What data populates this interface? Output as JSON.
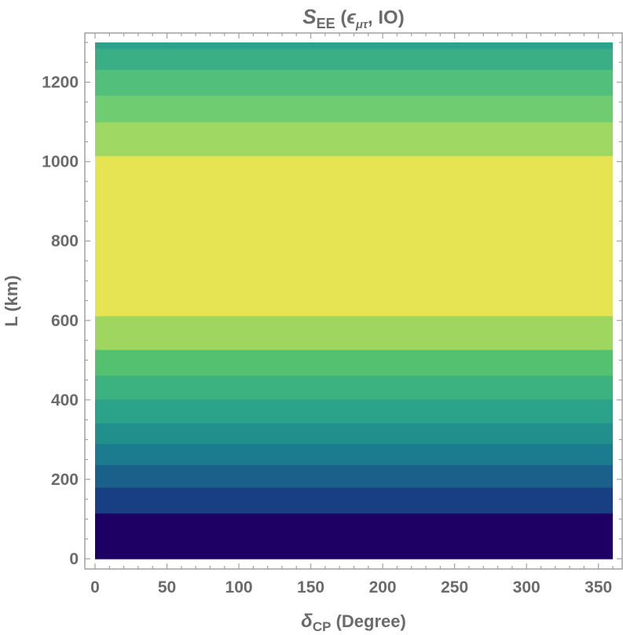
{
  "chart_data": {
    "type": "heatmap",
    "title": {
      "main": "S",
      "main_sub": "EE",
      "paren_open": " (",
      "eps": "ϵ",
      "eps_sub": "μτ",
      "rest": ", IO)"
    },
    "xlabel": {
      "main": "δ",
      "sub": "CP",
      "rest": " (Degree)"
    },
    "ylabel": "L (km)",
    "xlim": [
      0,
      360
    ],
    "ylim": [
      0,
      1300
    ],
    "x_ticks": [
      0,
      50,
      100,
      150,
      200,
      250,
      300,
      350
    ],
    "y_ticks": [
      0,
      200,
      400,
      600,
      800,
      1000,
      1200
    ],
    "grid": false,
    "bands": [
      {
        "y0": 0,
        "y1": 115,
        "color": "#1e0064"
      },
      {
        "y0": 115,
        "y1": 180,
        "color": "#183e83"
      },
      {
        "y0": 180,
        "y1": 237,
        "color": "#19608a"
      },
      {
        "y0": 237,
        "y1": 290,
        "color": "#1b7b8f"
      },
      {
        "y0": 290,
        "y1": 342,
        "color": "#21908d"
      },
      {
        "y0": 342,
        "y1": 402,
        "color": "#2ba28a"
      },
      {
        "y0": 402,
        "y1": 462,
        "color": "#3bb27f"
      },
      {
        "y0": 462,
        "y1": 527,
        "color": "#54c171"
      },
      {
        "y0": 527,
        "y1": 612,
        "color": "#9ed660"
      },
      {
        "y0": 612,
        "y1": 1015,
        "color": "#e6e453"
      },
      {
        "y0": 1015,
        "y1": 1100,
        "color": "#9fd863"
      },
      {
        "y0": 1100,
        "y1": 1167,
        "color": "#6fcc70"
      },
      {
        "y0": 1167,
        "y1": 1232,
        "color": "#52c07a"
      },
      {
        "y0": 1232,
        "y1": 1285,
        "color": "#3aae85"
      },
      {
        "y0": 1285,
        "y1": 1300,
        "color": "#2ca28c"
      }
    ]
  },
  "colors": {
    "frame": "#a0a0a0",
    "text": "#6b6b6b"
  }
}
